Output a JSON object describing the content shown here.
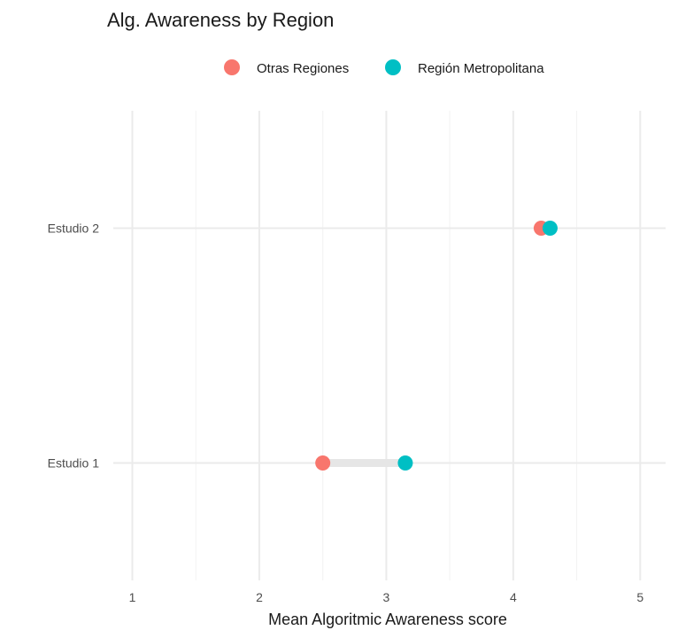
{
  "chart_data": {
    "type": "scatter",
    "subtype": "dumbbell",
    "title": "Alg. Awareness by Region",
    "xlabel": "Mean Algoritmic Awareness score",
    "ylabel": "",
    "xlim": [
      0.85,
      5.2
    ],
    "x_ticks": [
      1,
      2,
      3,
      4,
      5
    ],
    "categories": [
      "Estudio 1",
      "Estudio 2"
    ],
    "series": [
      {
        "name": "Otras Regiones",
        "color": "#F8766D",
        "values": [
          2.5,
          4.22
        ]
      },
      {
        "name": "Región Metropolitana",
        "color": "#00BFC4",
        "values": [
          3.15,
          4.29
        ]
      }
    ],
    "segment_color": "#e6e6e6",
    "legend_position": "top",
    "grid": true
  }
}
